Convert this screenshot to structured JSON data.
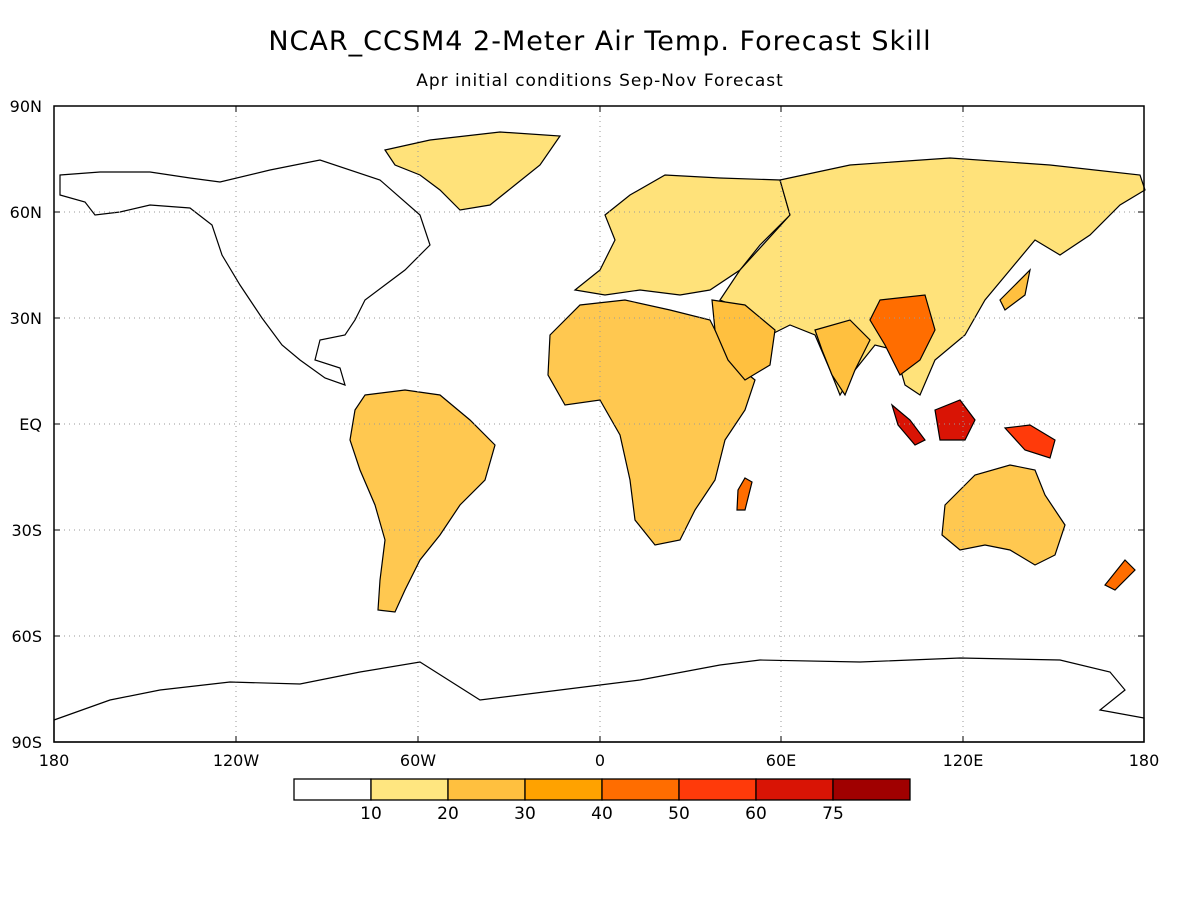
{
  "title": "NCAR_CCSM4 2-Meter Air Temp. Forecast Skill",
  "subtitle": "Apr initial conditions  Sep-Nov Forecast",
  "map": {
    "lat_labels": [
      "90N",
      "60N",
      "30N",
      "EQ",
      "30S",
      "60S",
      "90S"
    ],
    "lon_labels": [
      "180",
      "120W",
      "60W",
      "0",
      "60E",
      "120E",
      "180"
    ],
    "grid": "dotted"
  },
  "colorbar": {
    "labels": [
      "10",
      "20",
      "30",
      "40",
      "50",
      "60",
      "75"
    ],
    "colors": [
      "#ffffff",
      "#ffe680",
      "#ffc03f",
      "#ffa200",
      "#ff6d00",
      "#ff3a0a",
      "#d91405",
      "#a00000"
    ]
  }
}
